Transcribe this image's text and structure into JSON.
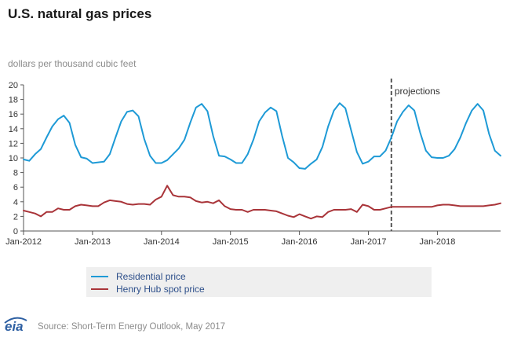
{
  "header": {
    "title": "U.S. natural gas prices",
    "unit_label": "dollars per thousand cubic feet"
  },
  "legend": {
    "residential": "Residential price",
    "henry_hub": "Henry Hub spot price"
  },
  "footer": {
    "logo_text": "eia",
    "source": "Source: Short-Term Energy Outlook, May 2017"
  },
  "colors": {
    "residential": "#1e9ad6",
    "henry_hub": "#a93439",
    "projection_line": "#555555",
    "axis": "#555555"
  },
  "chart_data": {
    "type": "line",
    "title": "U.S. natural gas prices",
    "ylabel": "dollars per thousand cubic feet",
    "xlabel": "",
    "ylim": [
      0,
      20
    ],
    "yticks": [
      0,
      2,
      4,
      6,
      8,
      10,
      12,
      14,
      16,
      18,
      20
    ],
    "grid": false,
    "x_tick_labels": [
      "Jan-2012",
      "Jan-2013",
      "Jan-2014",
      "Jan-2015",
      "Jan-2016",
      "Jan-2017",
      "Jan-2018"
    ],
    "x_start": "2012-01",
    "x_end": "2018-12",
    "projection": {
      "start": "2017-05",
      "label": "projections"
    },
    "legend_position": "bottom",
    "series": [
      {
        "name": "Residential price",
        "color": "#1e9ad6",
        "values": [
          9.8,
          9.6,
          10.5,
          11.2,
          12.8,
          14.3,
          15.3,
          15.8,
          14.8,
          11.8,
          10.1,
          9.9,
          9.3,
          9.4,
          9.5,
          10.5,
          12.8,
          15.0,
          16.3,
          16.5,
          15.7,
          12.6,
          10.3,
          9.3,
          9.3,
          9.7,
          10.5,
          11.3,
          12.5,
          14.8,
          16.9,
          17.4,
          16.4,
          13.0,
          10.3,
          10.2,
          9.8,
          9.3,
          9.3,
          10.5,
          12.5,
          15.0,
          16.2,
          16.9,
          16.4,
          13.0,
          10.0,
          9.4,
          8.6,
          8.5,
          9.2,
          9.8,
          11.5,
          14.3,
          16.5,
          17.5,
          16.8,
          13.8,
          10.8,
          9.2,
          9.5,
          10.2,
          10.2,
          11.0,
          12.8,
          15.0,
          16.3,
          17.2,
          16.5,
          13.5,
          11.0,
          10.1,
          10.0,
          10.0,
          10.3,
          11.2,
          12.8,
          14.8,
          16.5,
          17.4,
          16.5,
          13.3,
          11.0,
          10.3
        ]
      },
      {
        "name": "Henry Hub spot price",
        "color": "#a93439",
        "values": [
          2.8,
          2.6,
          2.4,
          2.0,
          2.6,
          2.6,
          3.1,
          2.9,
          2.9,
          3.4,
          3.6,
          3.5,
          3.4,
          3.4,
          3.9,
          4.2,
          4.1,
          4.0,
          3.7,
          3.6,
          3.7,
          3.7,
          3.6,
          4.3,
          4.7,
          6.2,
          4.9,
          4.7,
          4.7,
          4.6,
          4.1,
          3.9,
          4.0,
          3.8,
          4.2,
          3.4,
          3.0,
          2.9,
          2.9,
          2.6,
          2.9,
          2.9,
          2.9,
          2.8,
          2.7,
          2.4,
          2.1,
          1.9,
          2.3,
          2.0,
          1.7,
          2.0,
          1.9,
          2.6,
          2.9,
          2.9,
          2.9,
          3.0,
          2.6,
          3.6,
          3.4,
          2.9,
          2.9,
          3.1,
          3.3,
          3.3,
          3.3,
          3.3,
          3.3,
          3.3,
          3.3,
          3.3,
          3.5,
          3.6,
          3.6,
          3.5,
          3.4,
          3.4,
          3.4,
          3.4,
          3.4,
          3.5,
          3.6,
          3.8
        ]
      }
    ]
  }
}
